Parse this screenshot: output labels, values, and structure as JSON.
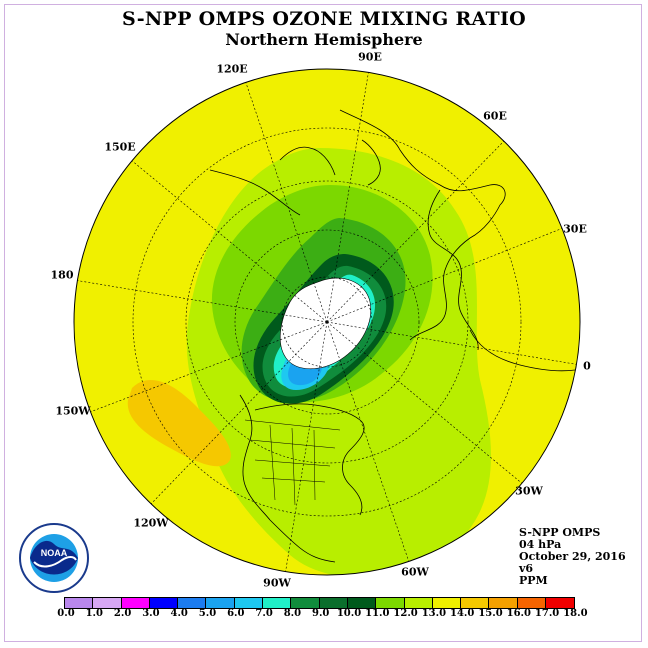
{
  "title": "S-NPP OMPS OZONE MIXING RATIO",
  "subtitle": "Northern Hemisphere",
  "longitude_labels": [
    "90E",
    "60E",
    "30E",
    "0",
    "30W",
    "60W",
    "90W",
    "120W",
    "150W",
    "180",
    "150E",
    "120E"
  ],
  "info": {
    "instrument": "S-NPP OMPS",
    "level": "04 hPa",
    "date": "October 29, 2016",
    "version": "v6",
    "units": "PPM"
  },
  "logo": {
    "text": "NOAA",
    "ring_text": "NATIONAL OCEANIC AND ATMOSPHERIC ADMINISTRATION · U.S. DEPARTMENT OF COMMERCE",
    "icon": "noaa-logo-icon"
  },
  "colorbar": {
    "labels": [
      "0.0",
      "1.0",
      "2.0",
      "3.0",
      "4.0",
      "5.0",
      "6.0",
      "7.0",
      "8.0",
      "9.0",
      "10.0",
      "11.0",
      "12.0",
      "13.0",
      "14.0",
      "15.0",
      "16.0",
      "17.0",
      "18.0"
    ],
    "colors": [
      "#b987ec",
      "#d7a7f4",
      "#ff00ff",
      "#0000ff",
      "#1c7cf0",
      "#1aa3f0",
      "#1ec8f0",
      "#20f0c8",
      "#108c3c",
      "#0a6e2c",
      "#005a1c",
      "#7cd800",
      "#b8ee00",
      "#f0f000",
      "#f5c800",
      "#f5a000",
      "#f56400",
      "#f00000",
      "#8c5a3c"
    ]
  },
  "colors": {
    "background": "#f0f000",
    "pole_missing": "#ffffff",
    "coast": "#000000"
  }
}
